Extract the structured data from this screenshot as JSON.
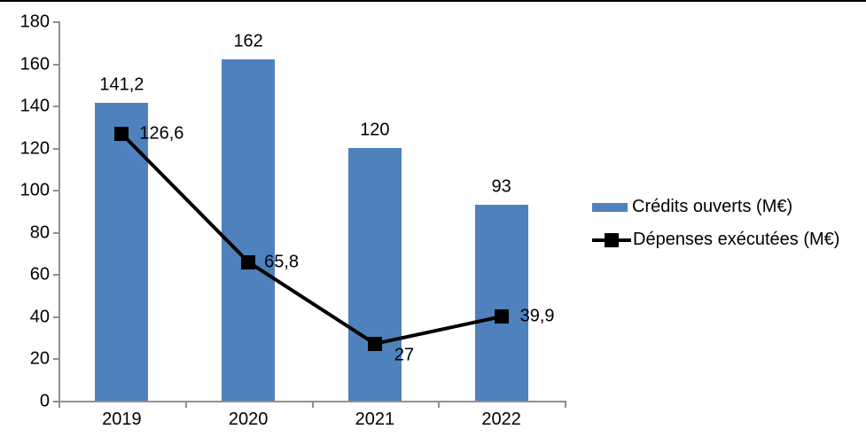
{
  "chart_data": {
    "type": "bar+line combo",
    "categories": [
      "2019",
      "2020",
      "2021",
      "2022"
    ],
    "series": [
      {
        "name": "Crédits ouverts (M€)",
        "type": "bar",
        "color": "#4F81BD",
        "values": [
          141.2,
          162,
          120,
          93
        ],
        "labels": [
          "141,2",
          "162",
          "120",
          "93"
        ]
      },
      {
        "name": "Dépenses exécutées (M€)",
        "type": "line",
        "color": "#000000",
        "marker": "square",
        "values": [
          126.6,
          65.8,
          27,
          39.9
        ],
        "labels": [
          "126,6",
          "65,8",
          "27",
          "39,9"
        ]
      }
    ],
    "title": "",
    "xlabel": "",
    "ylabel": "",
    "ylim": [
      0,
      180
    ],
    "ytick_step": 20,
    "yticks": [
      "0",
      "20",
      "40",
      "60",
      "80",
      "100",
      "120",
      "140",
      "160",
      "180"
    ],
    "grid": false,
    "legend_position": "right",
    "axis_color": "#909090",
    "text_color": "#000000"
  }
}
